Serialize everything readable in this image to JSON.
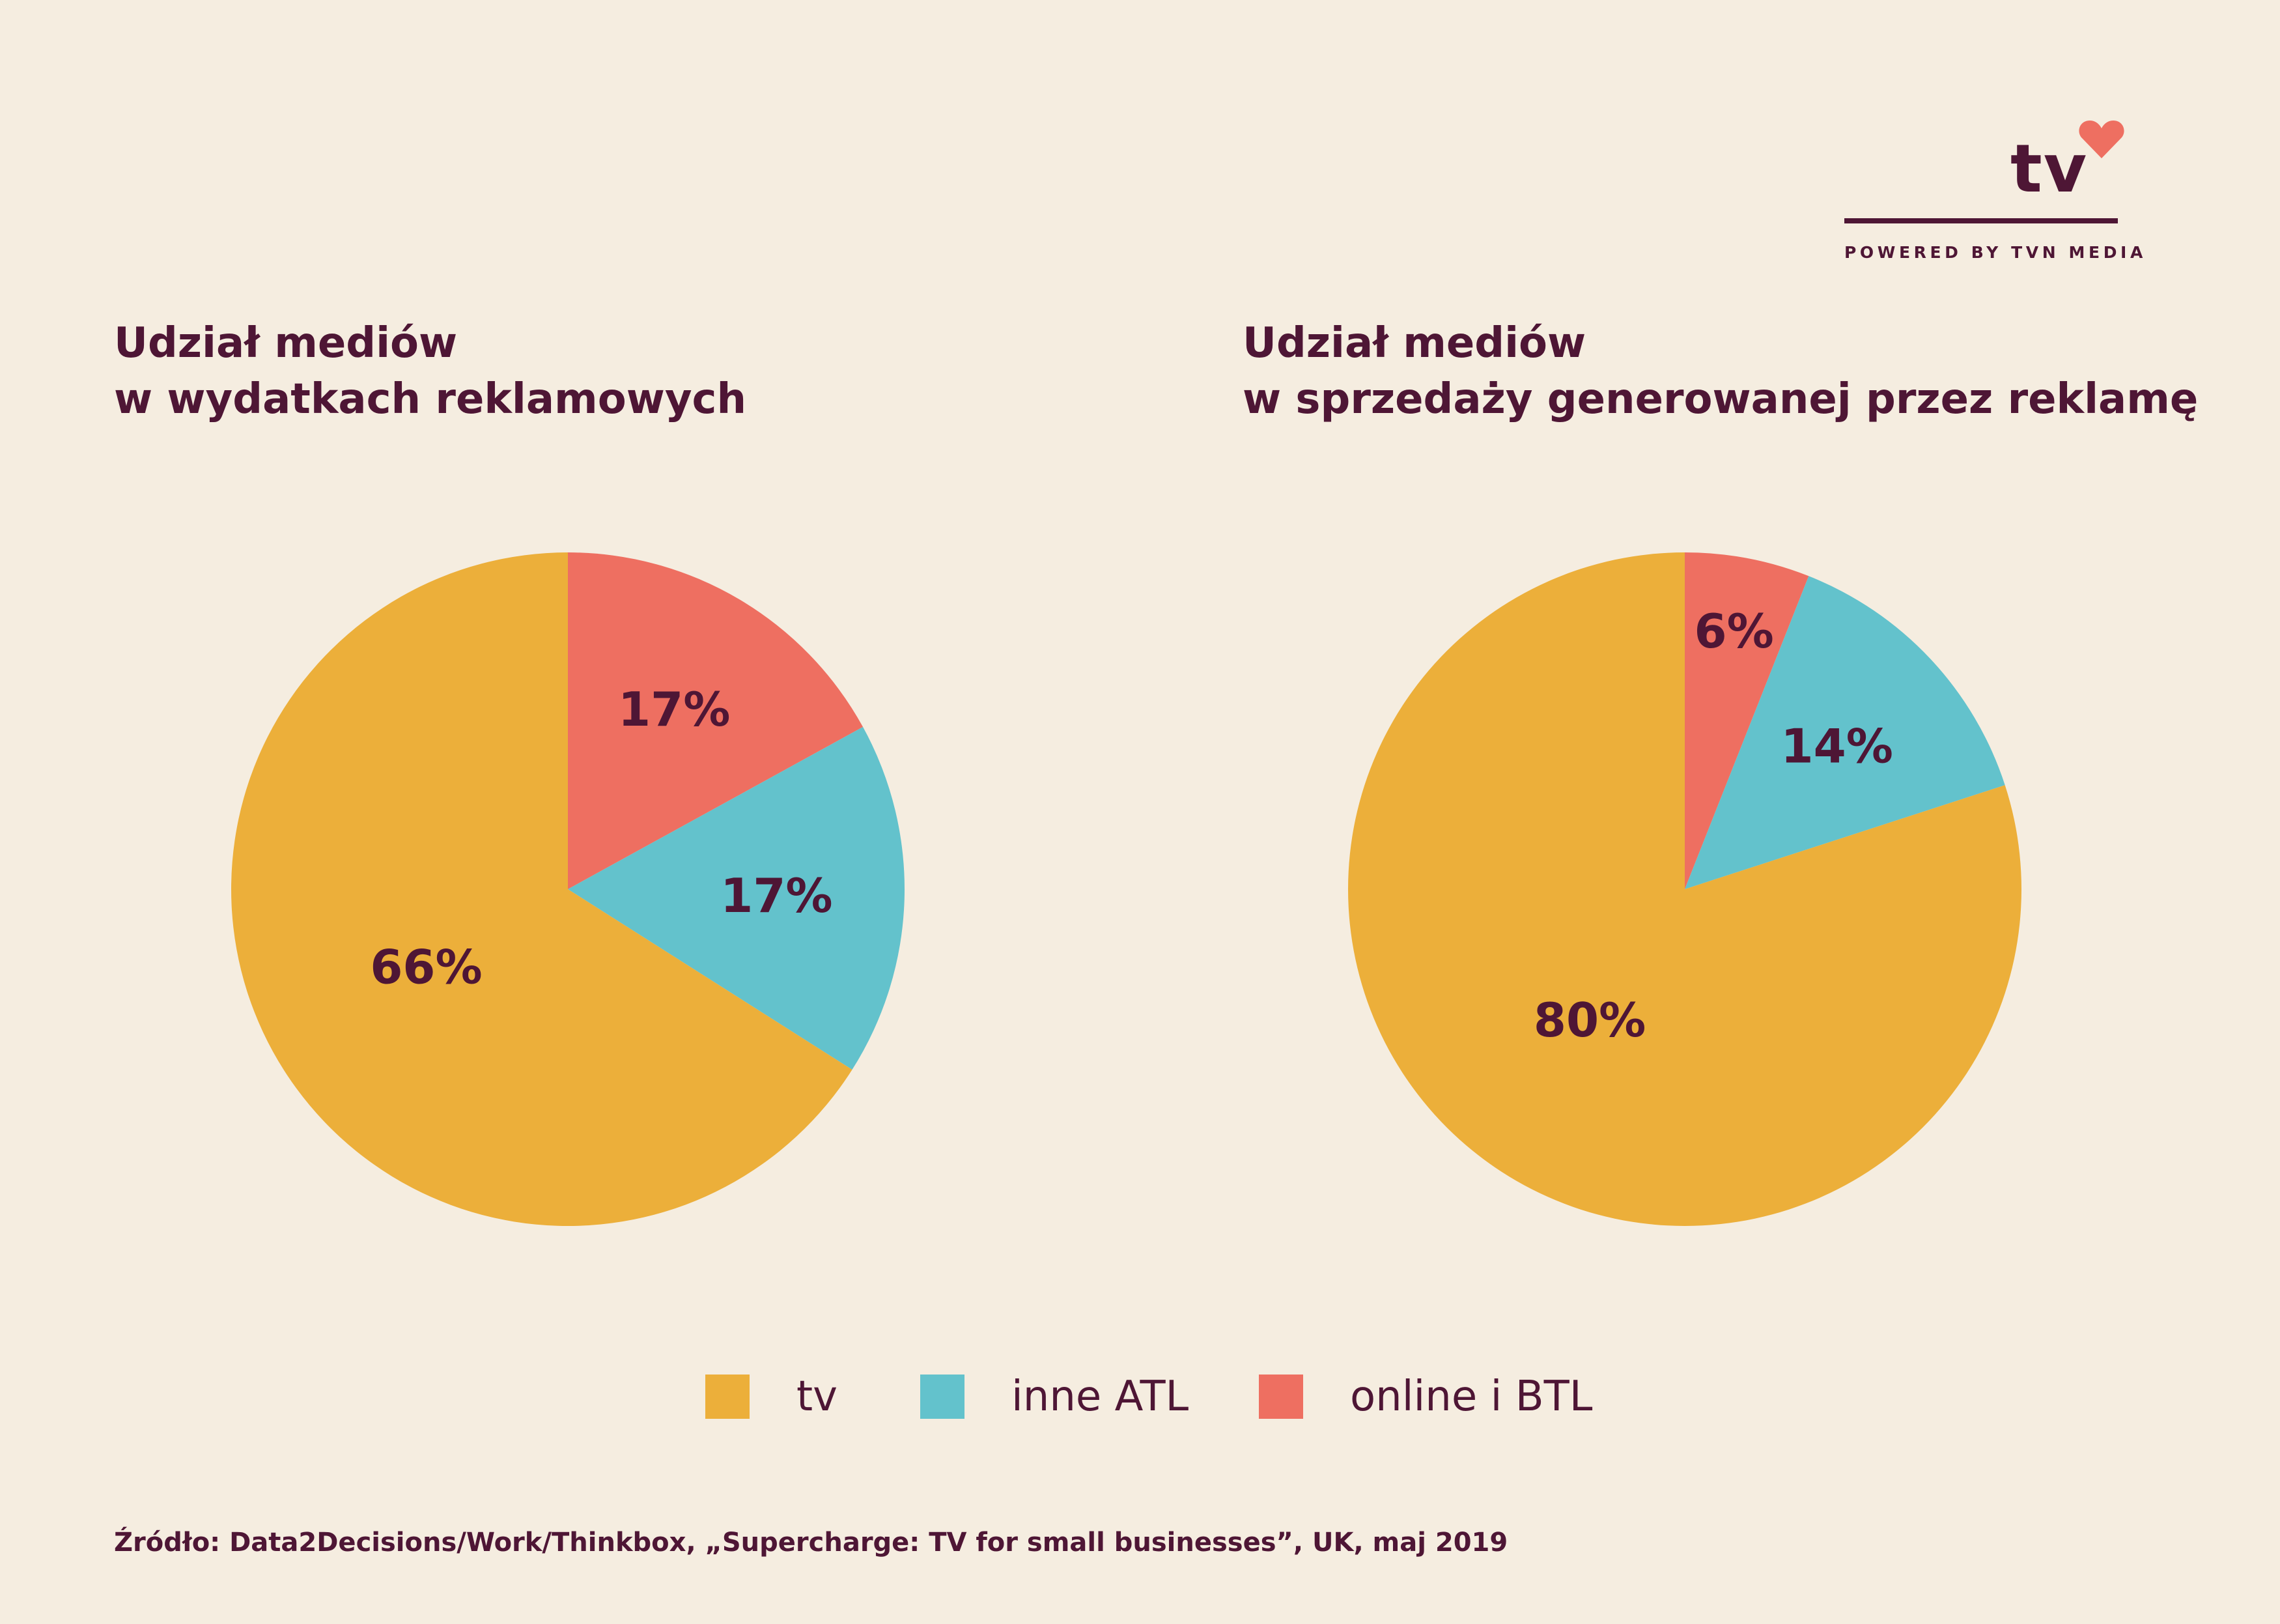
{
  "colors": {
    "tv": "#ECAF3A",
    "inne_atl": "#63C2CC",
    "online_btl": "#EE6F61",
    "text": "#4E1635",
    "background": "#F5EDE0"
  },
  "logo": {
    "text": "tv",
    "caption": "POWERED BY TVN MEDIA",
    "icon": "heart-icon"
  },
  "chart_data": [
    {
      "type": "pie",
      "title": [
        "Udział mediów",
        "w wydatkach reklamowych"
      ],
      "slices": [
        {
          "name": "online i BTL",
          "value": 17,
          "label": "17%"
        },
        {
          "name": "inne ATL",
          "value": 17,
          "label": "17%"
        },
        {
          "name": "tv",
          "value": 66,
          "label": "66%"
        }
      ]
    },
    {
      "type": "pie",
      "title": [
        "Udział mediów",
        "w sprzedaży generowanej przez reklamę"
      ],
      "slices": [
        {
          "name": "online i BTL",
          "value": 6,
          "label": "6%"
        },
        {
          "name": "inne ATL",
          "value": 14,
          "label": "14%"
        },
        {
          "name": "tv",
          "value": 80,
          "label": "80%"
        }
      ]
    }
  ],
  "legend": [
    {
      "key": "tv",
      "label": "tv"
    },
    {
      "key": "inne_atl",
      "label": "inne ATL"
    },
    {
      "key": "online_btl",
      "label": "online i BTL"
    }
  ],
  "source": "Źródło: Data2Decisions/Work/Thinkbox, „Supercharge: TV for small businesses”, UK, maj 2019"
}
